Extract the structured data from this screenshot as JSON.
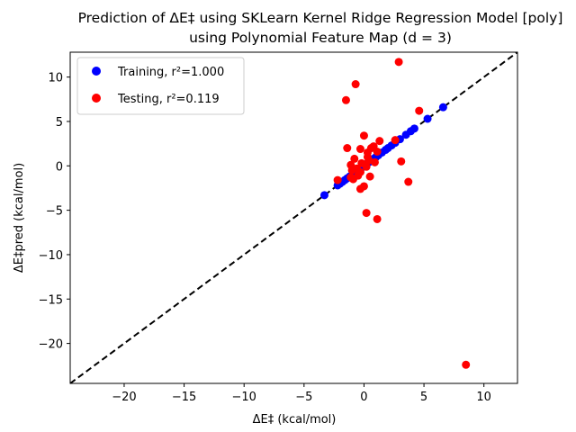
{
  "chart_data": {
    "type": "scatter",
    "title_line1": "Prediction of ΔE‡ using SKLearn Kernel Ridge Regression Model [poly]",
    "title_line2": "using Polynomial Feature Map (d = 3)",
    "xlabel": "ΔE‡ (kcal/mol)",
    "ylabel": "ΔE‡pred (kcal/mol)",
    "xlim": [
      -24.5,
      12.8
    ],
    "ylim": [
      -24.5,
      12.8
    ],
    "x_ticks": [
      -20,
      -15,
      -10,
      -5,
      0,
      5,
      10
    ],
    "y_ticks": [
      -20,
      -15,
      -10,
      -5,
      0,
      5,
      10
    ],
    "x_tick_labels": [
      "−20",
      "−15",
      "−10",
      "−5",
      "0",
      "5",
      "10"
    ],
    "y_tick_labels": [
      "−20",
      "−15",
      "−10",
      "−5",
      "0",
      "5",
      "10"
    ],
    "grid": false,
    "legend_position": "top-left",
    "reference_line": {
      "style": "dashed",
      "color": "#000000",
      "from": [
        -24.5,
        -24.5
      ],
      "to": [
        12.8,
        12.8
      ]
    },
    "series": [
      {
        "name": "Training, r²=1.000",
        "color": "#0000ff",
        "points": [
          [
            -3.3,
            -3.3
          ],
          [
            -2.2,
            -2.2
          ],
          [
            -2.0,
            -2.0
          ],
          [
            -1.8,
            -1.8
          ],
          [
            -1.6,
            -1.6
          ],
          [
            -1.4,
            -1.4
          ],
          [
            -1.2,
            -1.2
          ],
          [
            -1.0,
            -1.0
          ],
          [
            -0.8,
            -0.8
          ],
          [
            -0.6,
            -0.6
          ],
          [
            -0.4,
            -0.4
          ],
          [
            -0.2,
            -0.2
          ],
          [
            0.0,
            0.0
          ],
          [
            0.2,
            0.2
          ],
          [
            0.4,
            0.4
          ],
          [
            0.6,
            0.6
          ],
          [
            0.8,
            0.8
          ],
          [
            1.0,
            1.0
          ],
          [
            1.2,
            1.2
          ],
          [
            1.5,
            1.5
          ],
          [
            1.8,
            1.8
          ],
          [
            2.0,
            2.0
          ],
          [
            2.3,
            2.3
          ],
          [
            2.6,
            2.6
          ],
          [
            3.0,
            3.0
          ],
          [
            3.5,
            3.5
          ],
          [
            3.9,
            3.9
          ],
          [
            4.2,
            4.2
          ],
          [
            5.3,
            5.3
          ],
          [
            6.6,
            6.6
          ]
        ]
      },
      {
        "name": "Testing, r²=0.119",
        "color": "#ff0000",
        "points": [
          [
            2.9,
            11.7
          ],
          [
            -0.7,
            9.2
          ],
          [
            -1.5,
            7.4
          ],
          [
            4.6,
            6.2
          ],
          [
            0.0,
            3.4
          ],
          [
            -1.4,
            2.0
          ],
          [
            -0.3,
            1.9
          ],
          [
            0.3,
            1.5
          ],
          [
            0.6,
            2.0
          ],
          [
            0.8,
            2.2
          ],
          [
            1.3,
            2.8
          ],
          [
            2.6,
            2.9
          ],
          [
            3.1,
            0.5
          ],
          [
            3.7,
            -1.8
          ],
          [
            -2.2,
            -1.6
          ],
          [
            -1.0,
            -0.5
          ],
          [
            -1.1,
            -1.3
          ],
          [
            -0.9,
            -1.5
          ],
          [
            -0.6,
            -0.3
          ],
          [
            -0.5,
            -1.1
          ],
          [
            -0.3,
            -0.7
          ],
          [
            -0.2,
            0.3
          ],
          [
            0.0,
            -2.3
          ],
          [
            -0.3,
            -2.6
          ],
          [
            0.5,
            -1.2
          ],
          [
            0.3,
            1.0
          ],
          [
            0.9,
            0.4
          ],
          [
            0.2,
            -0.1
          ],
          [
            0.4,
            0.6
          ],
          [
            -1.1,
            0.1
          ],
          [
            -0.8,
            0.8
          ],
          [
            1.1,
            1.6
          ],
          [
            0.2,
            -5.3
          ],
          [
            1.1,
            -6.0
          ],
          [
            8.5,
            -22.4
          ]
        ]
      }
    ]
  }
}
